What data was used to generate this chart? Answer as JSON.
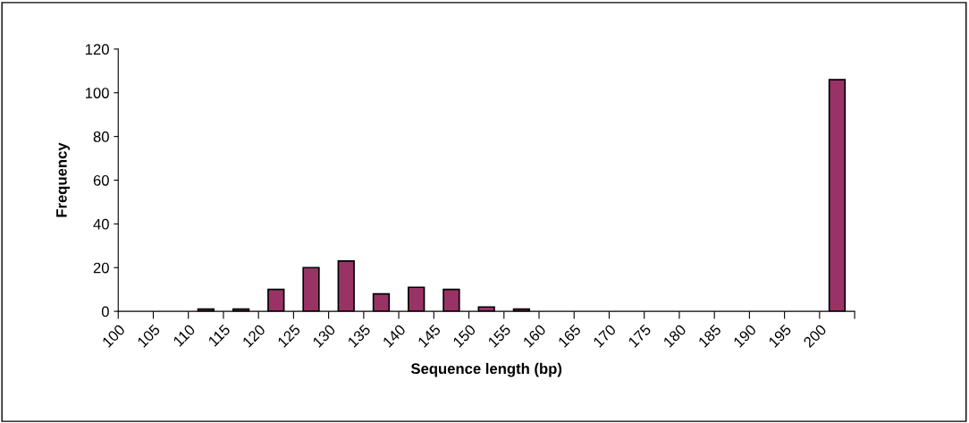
{
  "chart_data": {
    "type": "histogram",
    "xlabel": "Sequence length (bp)",
    "ylabel": "Frequency",
    "bins": [
      100,
      105,
      110,
      115,
      120,
      125,
      130,
      135,
      140,
      145,
      150,
      155,
      160,
      165,
      170,
      175,
      180,
      185,
      190,
      195,
      200,
      205
    ],
    "values": [
      0,
      0,
      1,
      1,
      10,
      20,
      23,
      8,
      11,
      10,
      2,
      1,
      0,
      0,
      0,
      0,
      0,
      0,
      0,
      0,
      106
    ],
    "color": "#993366",
    "xlim": [
      100,
      205
    ],
    "xticks": [
      100,
      105,
      110,
      115,
      120,
      125,
      130,
      135,
      140,
      145,
      150,
      155,
      160,
      165,
      170,
      175,
      180,
      185,
      190,
      195,
      200,
      {
        "value": 205,
        "label": null
      }
    ],
    "ylim": [
      0,
      120
    ],
    "yticks": [
      0,
      20,
      40,
      60,
      80,
      100,
      120
    ],
    "grid": false,
    "legend": false
  }
}
